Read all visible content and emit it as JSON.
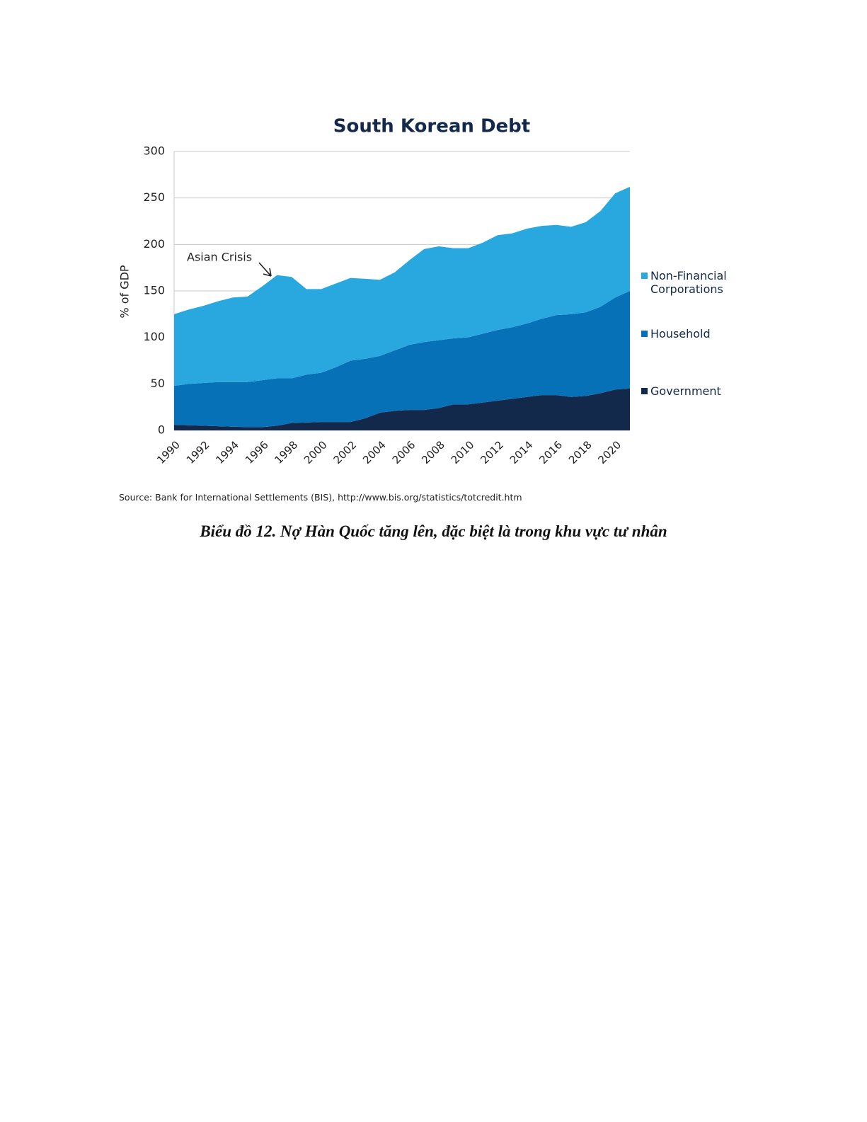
{
  "chart_data": {
    "type": "stacked_area",
    "title": "South Korean Debt",
    "y_label": "% of GDP",
    "annotation": "Asian Crisis",
    "source": "Source: Bank for International Settlements (BIS), http://www.bis.org/statistics/totcredit.htm",
    "x": [
      1990,
      1991,
      1992,
      1993,
      1994,
      1995,
      1996,
      1997,
      1998,
      1999,
      2000,
      2001,
      2002,
      2003,
      2004,
      2005,
      2006,
      2007,
      2008,
      2009,
      2010,
      2011,
      2012,
      2013,
      2014,
      2015,
      2016,
      2017,
      2018,
      2019,
      2020,
      2021
    ],
    "series": [
      {
        "name": "Government",
        "color": "#13294b",
        "values": [
          6,
          5.5,
          5,
          4.5,
          4,
          3.5,
          3.5,
          5,
          8,
          8.5,
          9,
          9,
          9,
          13,
          19,
          21,
          22,
          22,
          24,
          28,
          28,
          30,
          32,
          34,
          36,
          38,
          38,
          36,
          37,
          40,
          44,
          45
        ]
      },
      {
        "name": "Household",
        "color": "#0671b7",
        "values": [
          42,
          44.5,
          46,
          47.5,
          48,
          48.5,
          50.5,
          51,
          48,
          51.5,
          53,
          59,
          66,
          64,
          61,
          65,
          70,
          73,
          73,
          71,
          72,
          74,
          76,
          77,
          79,
          82,
          86,
          89,
          90,
          93,
          99,
          105
        ]
      },
      {
        "name": "Non-Financial Corporations",
        "color": "#29a8e0",
        "values": [
          77,
          80,
          83,
          87,
          91,
          92,
          101,
          111,
          109,
          92,
          90,
          90,
          89,
          86,
          82,
          84,
          91,
          100,
          101,
          97,
          96,
          98,
          102,
          101,
          102,
          100,
          97,
          94,
          97,
          103,
          112,
          112
        ]
      }
    ],
    "xlim": [
      1990,
      2021
    ],
    "xticks": [
      1990,
      1992,
      1994,
      1996,
      1998,
      2000,
      2002,
      2004,
      2006,
      2008,
      2010,
      2012,
      2014,
      2016,
      2018,
      2020
    ],
    "ylim": [
      0,
      300
    ],
    "yticks": [
      0,
      50,
      100,
      150,
      200,
      250,
      300
    ],
    "grid": true
  },
  "caption": "Biểu đồ 12. Nợ Hàn Quốc tăng lên, đặc biệt là trong khu vực tư nhân"
}
